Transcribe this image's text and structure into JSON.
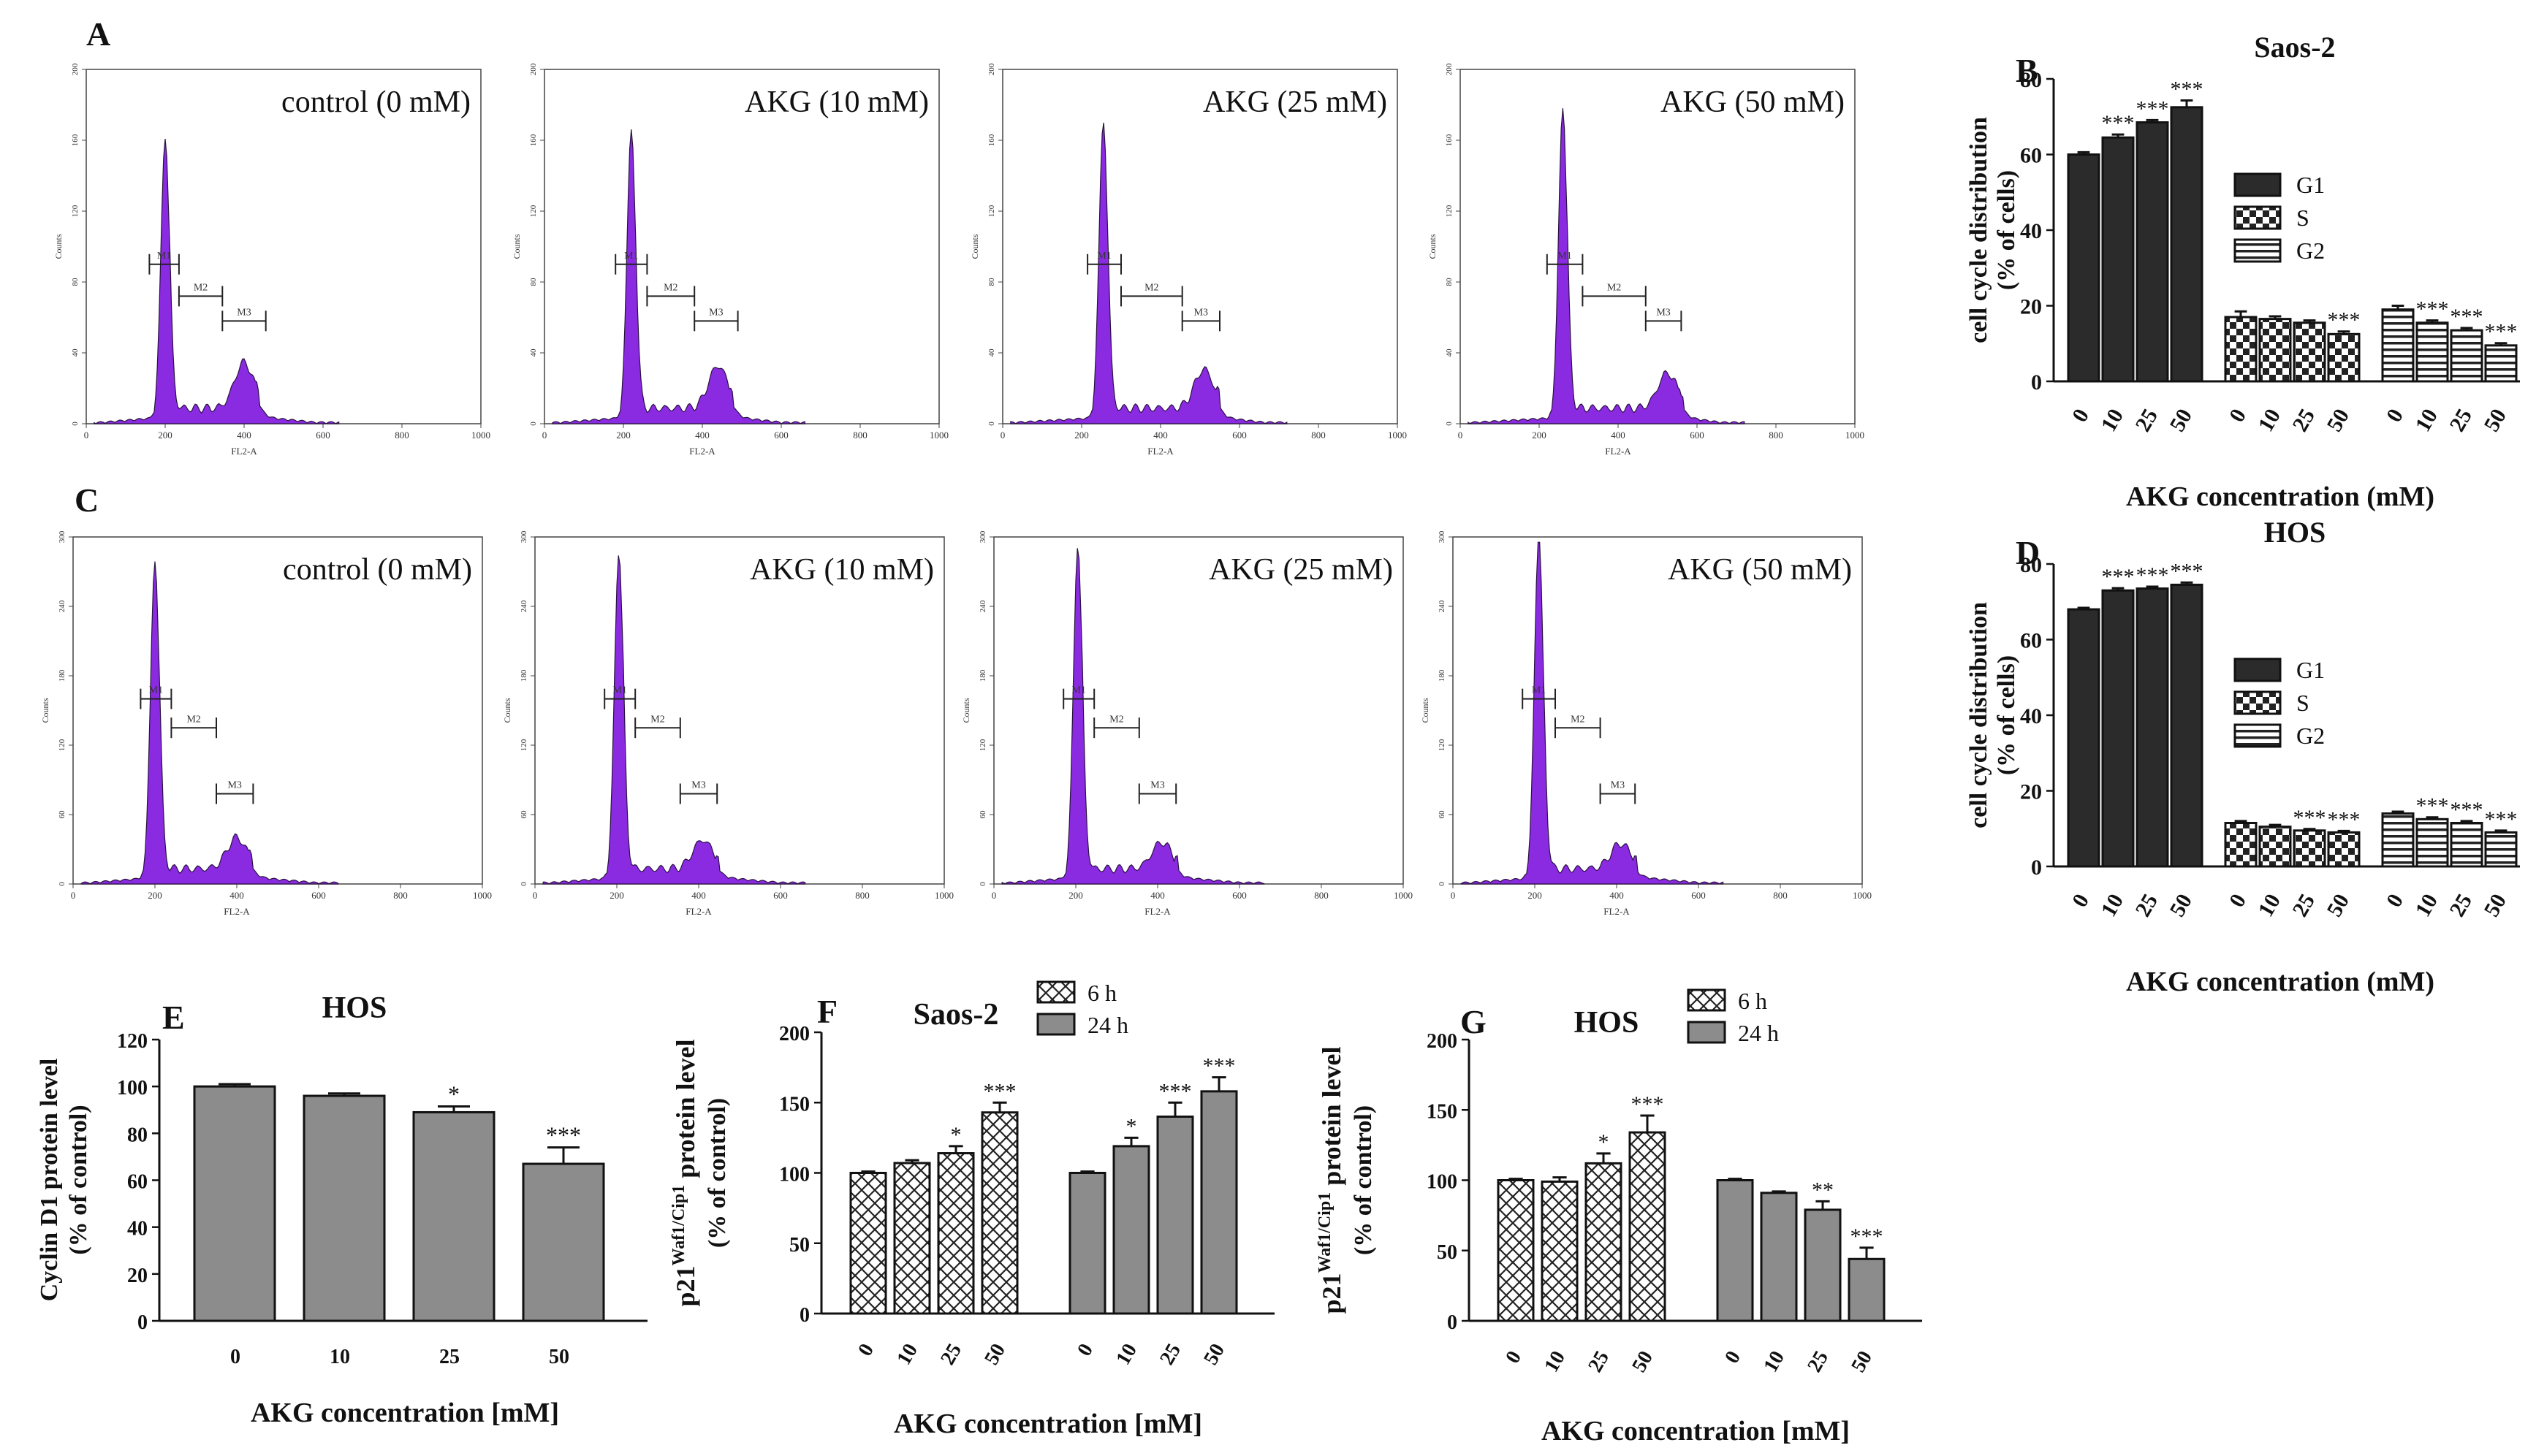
{
  "figure": {
    "panel_letters": [
      "A",
      "B",
      "C",
      "D",
      "E",
      "F",
      "G"
    ],
    "purple": "#8a2be2",
    "dark_bar": "#2b2b2b",
    "gray_bar": "#8c8c8c"
  },
  "chart_data": [
    {
      "id": "A",
      "type": "area",
      "kind": "histogram",
      "cell_line": "Saos-2",
      "xlabel": "FL2-A",
      "ylabel": "Counts",
      "xlim": [
        0,
        1000
      ],
      "ylim": [
        0,
        200
      ],
      "xticks": [
        0,
        200,
        400,
        600,
        800,
        1000
      ],
      "yticks": [
        0,
        40,
        80,
        120,
        160,
        200
      ],
      "markers": [
        "M1",
        "M2",
        "M3"
      ],
      "panels": [
        {
          "label": "control (0 mM)",
          "g1_peak": 200,
          "g1_height": 160,
          "g2_peak": 400,
          "g2_height": 26,
          "tail_end": 580,
          "m1": [
            160,
            235,
            90
          ],
          "m2": [
            235,
            345,
            72
          ],
          "m3": [
            345,
            455,
            58
          ]
        },
        {
          "label": "AKG (10 mM)",
          "g1_peak": 220,
          "g1_height": 165,
          "g2_peak": 440,
          "g2_height": 24,
          "tail_end": 600,
          "m1": [
            180,
            260,
            90
          ],
          "m2": [
            260,
            380,
            72
          ],
          "m3": [
            380,
            490,
            58
          ]
        },
        {
          "label": "AKG (25 mM)",
          "g1_peak": 255,
          "g1_height": 170,
          "g2_peak": 510,
          "g2_height": 22,
          "tail_end": 660,
          "m1": [
            215,
            300,
            90
          ],
          "m2": [
            300,
            455,
            72
          ],
          "m3": [
            455,
            550,
            58
          ]
        },
        {
          "label": "AKG (50 mM)",
          "g1_peak": 260,
          "g1_height": 177,
          "g2_peak": 525,
          "g2_height": 20,
          "tail_end": 660,
          "m1": [
            220,
            310,
            90
          ],
          "m2": [
            310,
            470,
            72
          ],
          "m3": [
            470,
            560,
            58
          ]
        }
      ]
    },
    {
      "id": "B",
      "type": "bar",
      "title": "Saos-2",
      "ylabel": "cell cycle distribution (% of cells)",
      "xlabel": "AKG concentration (mM)",
      "ylim": [
        0,
        80
      ],
      "yticks": [
        0,
        20,
        40,
        60,
        80
      ],
      "categories": [
        "0",
        "10",
        "25",
        "50"
      ],
      "series": [
        {
          "name": "G1",
          "pattern": "solid",
          "values": [
            60,
            64.5,
            68.5,
            72.5
          ],
          "errors": [
            0.6,
            0.8,
            0.6,
            1.8
          ],
          "sig": [
            "",
            "***",
            "***",
            "***"
          ]
        },
        {
          "name": "S",
          "pattern": "check",
          "values": [
            17,
            16.5,
            15.5,
            12.5
          ],
          "errors": [
            1.5,
            0.7,
            0.6,
            0.7
          ],
          "sig": [
            "",
            "",
            "",
            "***"
          ]
        },
        {
          "name": "G2",
          "pattern": "stripe",
          "values": [
            19,
            15.5,
            13.5,
            9.5
          ],
          "errors": [
            1.0,
            0.6,
            0.6,
            0.6
          ],
          "sig": [
            "",
            "***",
            "***",
            "***"
          ]
        }
      ]
    },
    {
      "id": "C",
      "type": "area",
      "kind": "histogram",
      "cell_line": "HOS",
      "xlabel": "FL2-A",
      "ylabel": "Counts",
      "xlim": [
        0,
        1000
      ],
      "ylim": [
        0,
        300
      ],
      "xticks": [
        0,
        200,
        400,
        600,
        800,
        1000
      ],
      "yticks": [
        0,
        60,
        120,
        180,
        240,
        300
      ],
      "markers": [
        "M1",
        "M2",
        "M3"
      ],
      "panels": [
        {
          "label": "control (0 mM)",
          "g1_peak": 200,
          "g1_height": 277,
          "g2_peak": 400,
          "g2_height": 27,
          "tail_end": 590,
          "m1": [
            165,
            240,
            160
          ],
          "m2": [
            240,
            350,
            135
          ],
          "m3": [
            350,
            440,
            78
          ]
        },
        {
          "label": "AKG (10 mM)",
          "g1_peak": 205,
          "g1_height": 285,
          "g2_peak": 410,
          "g2_height": 25,
          "tail_end": 600,
          "m1": [
            170,
            245,
            160
          ],
          "m2": [
            245,
            355,
            135
          ],
          "m3": [
            355,
            445,
            78
          ]
        },
        {
          "label": "AKG (25 mM)",
          "g1_peak": 205,
          "g1_height": 290,
          "g2_peak": 410,
          "g2_height": 23,
          "tail_end": 600,
          "m1": [
            170,
            245,
            160
          ],
          "m2": [
            245,
            355,
            135
          ],
          "m3": [
            355,
            445,
            78
          ]
        },
        {
          "label": "AKG (50 mM)",
          "g1_peak": 210,
          "g1_height": 300,
          "g2_peak": 410,
          "g2_height": 22,
          "tail_end": 600,
          "m1": [
            170,
            250,
            160
          ],
          "m2": [
            250,
            360,
            135
          ],
          "m3": [
            360,
            445,
            78
          ]
        }
      ]
    },
    {
      "id": "D",
      "type": "bar",
      "title": "HOS",
      "ylabel": "cell cycle distribution (% of cells)",
      "xlabel": "AKG concentration (mM)",
      "ylim": [
        0,
        80
      ],
      "yticks": [
        0,
        20,
        40,
        60,
        80
      ],
      "categories": [
        "0",
        "10",
        "25",
        "50"
      ],
      "series": [
        {
          "name": "G1",
          "pattern": "solid",
          "values": [
            68,
            73,
            73.5,
            74.5
          ],
          "errors": [
            0.4,
            0.6,
            0.5,
            0.6
          ],
          "sig": [
            "",
            "***",
            "***",
            "***"
          ]
        },
        {
          "name": "S",
          "pattern": "check",
          "values": [
            11.5,
            10.5,
            9.5,
            9
          ],
          "errors": [
            0.5,
            0.5,
            0.4,
            0.4
          ],
          "sig": [
            "",
            "",
            "***",
            "***"
          ]
        },
        {
          "name": "G2",
          "pattern": "stripe",
          "values": [
            14,
            12.5,
            11.5,
            9
          ],
          "errors": [
            0.5,
            0.5,
            0.5,
            0.5
          ],
          "sig": [
            "",
            "***",
            "***",
            "***"
          ]
        }
      ]
    },
    {
      "id": "E",
      "type": "bar",
      "title": "HOS",
      "ylabel": "Cyclin D1 protein level (% of control)",
      "xlabel": "AKG concentration [mM]",
      "ylim": [
        0,
        120
      ],
      "yticks": [
        0,
        20,
        40,
        60,
        80,
        100,
        120
      ],
      "categories": [
        "0",
        "10",
        "25",
        "50"
      ],
      "series": [
        {
          "name": "Cyclin D1",
          "pattern": "gray",
          "values": [
            100,
            96,
            89,
            67
          ],
          "errors": [
            1,
            1,
            2.5,
            7
          ],
          "sig": [
            "",
            "",
            "*",
            "***"
          ]
        }
      ]
    },
    {
      "id": "F",
      "type": "bar",
      "title": "Saos-2",
      "ylabel_main": "p21",
      "ylabel_sup": "Waf1/Cip1",
      "ylabel_rest": " protein level",
      "ylabel2": "(% of control)",
      "xlabel": "AKG concentration [mM]",
      "ylim": [
        0,
        200
      ],
      "yticks": [
        0,
        50,
        100,
        150,
        200
      ],
      "categories": [
        "0",
        "10",
        "25",
        "50"
      ],
      "series": [
        {
          "name": "6 h",
          "pattern": "cross",
          "values": [
            100,
            107,
            114,
            143
          ],
          "errors": [
            1,
            2,
            5,
            7
          ],
          "sig": [
            "",
            "",
            "*",
            "***"
          ]
        },
        {
          "name": "24 h",
          "pattern": "gray",
          "values": [
            100,
            119,
            140,
            158
          ],
          "errors": [
            1,
            6,
            10,
            10
          ],
          "sig": [
            "",
            "*",
            "***",
            "***"
          ]
        }
      ]
    },
    {
      "id": "G",
      "type": "bar",
      "title": "HOS",
      "ylabel_main": "p21",
      "ylabel_sup": "Waf1/Cip1",
      "ylabel_rest": " protein level",
      "ylabel2": "(% of control)",
      "xlabel": "AKG concentration [mM]",
      "ylim": [
        0,
        200
      ],
      "yticks": [
        0,
        50,
        100,
        150,
        200
      ],
      "categories": [
        "0",
        "10",
        "25",
        "50"
      ],
      "series": [
        {
          "name": "6 h",
          "pattern": "cross",
          "values": [
            100,
            99,
            112,
            134
          ],
          "errors": [
            1,
            3,
            7,
            12
          ],
          "sig": [
            "",
            "",
            "*",
            "***"
          ]
        },
        {
          "name": "24 h",
          "pattern": "gray",
          "values": [
            100,
            91,
            79,
            44
          ],
          "errors": [
            1,
            1,
            6,
            8
          ],
          "sig": [
            "",
            "",
            "**",
            "***"
          ]
        }
      ]
    }
  ]
}
